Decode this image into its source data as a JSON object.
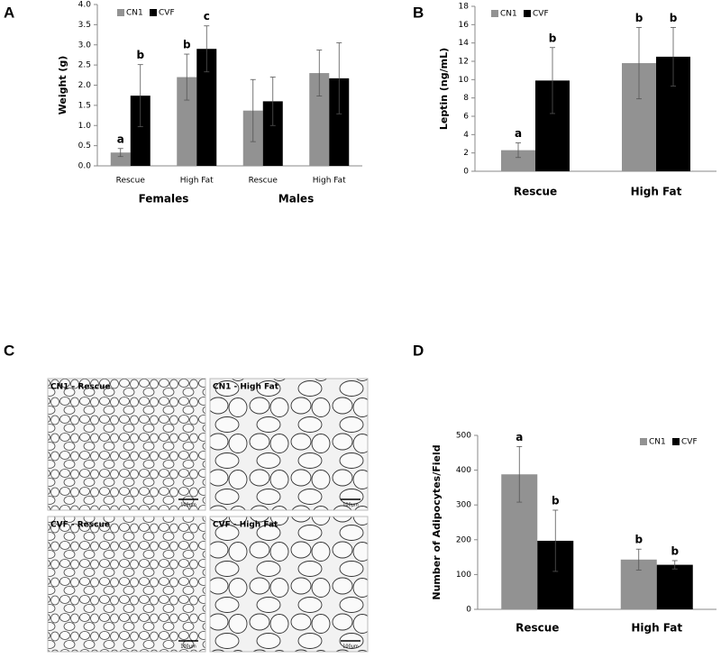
{
  "chart_data": [
    {
      "type": "bar",
      "panel": "A",
      "ylabel": "Weight (g)",
      "categories": [
        "Rescue",
        "High Fat",
        "Rescue",
        "High Fat"
      ],
      "groups": [
        "Females",
        "Males"
      ],
      "series": [
        {
          "name": "CN1",
          "color": "#929292",
          "values": [
            0.33,
            2.2,
            1.37,
            2.3
          ],
          "errors": [
            0.1,
            0.57,
            0.77,
            0.57
          ],
          "labels": [
            "a",
            "b",
            null,
            null
          ]
        },
        {
          "name": "CVF",
          "color": "#000000",
          "values": [
            1.74,
            2.9,
            1.6,
            2.17
          ],
          "errors": [
            0.77,
            0.57,
            0.6,
            0.88
          ],
          "labels": [
            "b",
            "c",
            null,
            null
          ]
        }
      ],
      "ylim": [
        0,
        4
      ],
      "yticks": [
        {
          "value": 0,
          "label": "0.0"
        },
        {
          "value": 0.5,
          "label": "0.5"
        },
        {
          "value": 1,
          "label": "1.0"
        },
        {
          "value": 1.5,
          "label": "1.5"
        },
        {
          "value": 2,
          "label": "2.0"
        },
        {
          "value": 2.5,
          "label": "2.5"
        },
        {
          "value": 3,
          "label": "3.0"
        },
        {
          "value": 3.5,
          "label": "3.5"
        },
        {
          "value": 4,
          "label": "4.0"
        }
      ]
    },
    {
      "type": "bar",
      "panel": "B",
      "ylabel": "Leptin (ng/mL)",
      "categories": [
        "Rescue",
        "High Fat"
      ],
      "series": [
        {
          "name": "CN1",
          "color": "#929292",
          "values": [
            2.3,
            11.8
          ],
          "errors": [
            0.8,
            3.9
          ],
          "labels": [
            "a",
            "b"
          ]
        },
        {
          "name": "CVF",
          "color": "#000000",
          "values": [
            9.9,
            12.5
          ],
          "errors": [
            3.6,
            3.2
          ],
          "labels": [
            "b",
            "b"
          ]
        }
      ],
      "ylim": [
        0,
        18
      ],
      "yticks": [
        0,
        2,
        4,
        6,
        8,
        10,
        12,
        14,
        16,
        18
      ]
    },
    {
      "type": "bar",
      "panel": "D",
      "ylabel": "Number of Adipocytes/Field",
      "categories": [
        "Rescue",
        "High Fat"
      ],
      "series": [
        {
          "name": "CN1",
          "color": "#929292",
          "values": [
            388,
            143
          ],
          "errors": [
            80,
            30
          ],
          "labels": [
            "a",
            "b"
          ]
        },
        {
          "name": "CVF",
          "color": "#000000",
          "values": [
            197,
            128
          ],
          "errors": [
            88,
            12
          ],
          "labels": [
            "b",
            "b"
          ]
        }
      ],
      "ylim": [
        0,
        500
      ],
      "yticks": [
        0,
        100,
        200,
        300,
        400,
        500
      ]
    }
  ],
  "micrographs": {
    "panel": "C",
    "images": [
      {
        "label": "CN1 - Rescue",
        "scale": "100µm"
      },
      {
        "label": "CN1 - High Fat",
        "scale": "100µm"
      },
      {
        "label": "CVF - Rescue",
        "scale": "100µm"
      },
      {
        "label": "CVF - High Fat",
        "scale": "100µm"
      }
    ]
  }
}
